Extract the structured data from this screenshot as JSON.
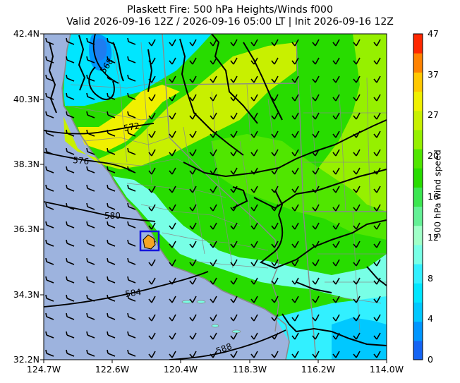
{
  "title": {
    "line1": "Plaskett Fire: 500 hPa Heights/Winds f000",
    "line2": "Valid 2026-09-16 12Z / 2026-09-16 05:00 LT | Init 2026-09-16 12Z"
  },
  "axes": {
    "lat_ticks": [
      "42.4N",
      "40.3N",
      "38.3N",
      "36.3N",
      "34.3N",
      "32.2N"
    ],
    "lon_ticks": [
      "124.7W",
      "122.6W",
      "120.4W",
      "118.3W",
      "116.2W",
      "114.0W"
    ]
  },
  "contours": {
    "labels": [
      "568",
      "572",
      "576",
      "580",
      "584",
      "588"
    ]
  },
  "colorbar": {
    "label": "500 hPa wind speed",
    "ticks": [
      "47",
      "37",
      "27",
      "20",
      "16",
      "12",
      "8",
      "4",
      "0"
    ],
    "levels": [
      0,
      2,
      4,
      6,
      8,
      10,
      12,
      14,
      16,
      18,
      20,
      23,
      27,
      32,
      37,
      42,
      47
    ],
    "colors": [
      "#1464f4",
      "#0096ff",
      "#00c8ff",
      "#00e6ff",
      "#32f0ff",
      "#78ffe6",
      "#a0ffc8",
      "#64f096",
      "#3ce650",
      "#28dc00",
      "#50e600",
      "#96f000",
      "#c8f000",
      "#f0f000",
      "#ffc800",
      "#ff8200",
      "#ff2800"
    ]
  },
  "map": {
    "ocean_color": "#9db3de",
    "fire_marker_color": "#1414dc",
    "fire_fill_color": "#f5a623"
  }
}
